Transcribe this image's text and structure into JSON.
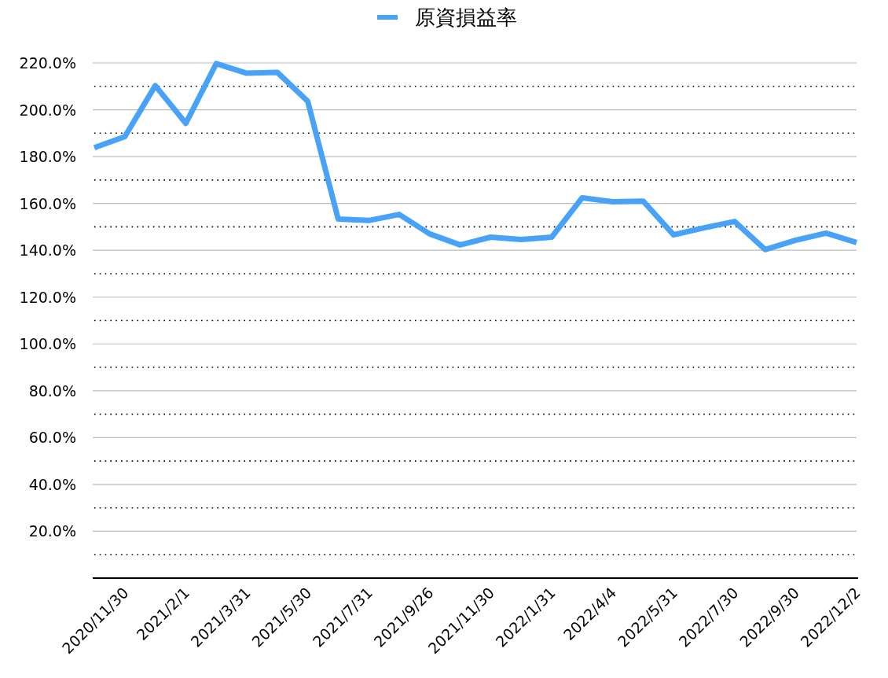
{
  "chart_data": {
    "type": "line",
    "categories": [
      null,
      "2020/11/30",
      null,
      "2021/2/1",
      null,
      "2021/3/31",
      null,
      "2021/5/30",
      null,
      "2021/7/31",
      null,
      "2021/9/26",
      null,
      "2021/11/30",
      null,
      "2022/1/31",
      null,
      "2022/4/4",
      null,
      "2022/5/31",
      null,
      "2022/7/30",
      null,
      "2022/9/30",
      null,
      "2022/12/2"
    ],
    "series": [
      {
        "name": "原資損益率",
        "color": "#48a2f8",
        "values": [
          183.8,
          188.5,
          210.3,
          194.2,
          219.7,
          215.6,
          216.0,
          203.6,
          153.3,
          152.7,
          155.3,
          147.0,
          142.3,
          145.6,
          144.6,
          145.6,
          162.4,
          160.7,
          161.0,
          146.6,
          149.6,
          152.3,
          140.3,
          144.3,
          147.3,
          143.3
        ]
      }
    ],
    "ylim": [
      0,
      220
    ],
    "yticks": [
      {
        "value": 10,
        "label": null
      },
      {
        "value": 20,
        "label": "20.0%"
      },
      {
        "value": 30,
        "label": null
      },
      {
        "value": 40,
        "label": "40.0%"
      },
      {
        "value": 50,
        "label": null
      },
      {
        "value": 60,
        "label": "60.0%"
      },
      {
        "value": 70,
        "label": null
      },
      {
        "value": 80,
        "label": "80.0%"
      },
      {
        "value": 90,
        "label": null
      },
      {
        "value": 100,
        "label": "100.0%"
      },
      {
        "value": 110,
        "label": null
      },
      {
        "value": 120,
        "label": "120.0%"
      },
      {
        "value": 130,
        "label": null
      },
      {
        "value": 140,
        "label": "140.0%"
      },
      {
        "value": 150,
        "label": null
      },
      {
        "value": 160,
        "label": "160.0%"
      },
      {
        "value": 170,
        "label": null
      },
      {
        "value": 180,
        "label": "180.0%"
      },
      {
        "value": 190,
        "label": null
      },
      {
        "value": 200,
        "label": "200.0%"
      },
      {
        "value": 210,
        "label": null
      },
      {
        "value": 220,
        "label": "220.0%"
      }
    ],
    "grid": "y",
    "legend": "top",
    "marker": "none",
    "line_style": "solid"
  }
}
